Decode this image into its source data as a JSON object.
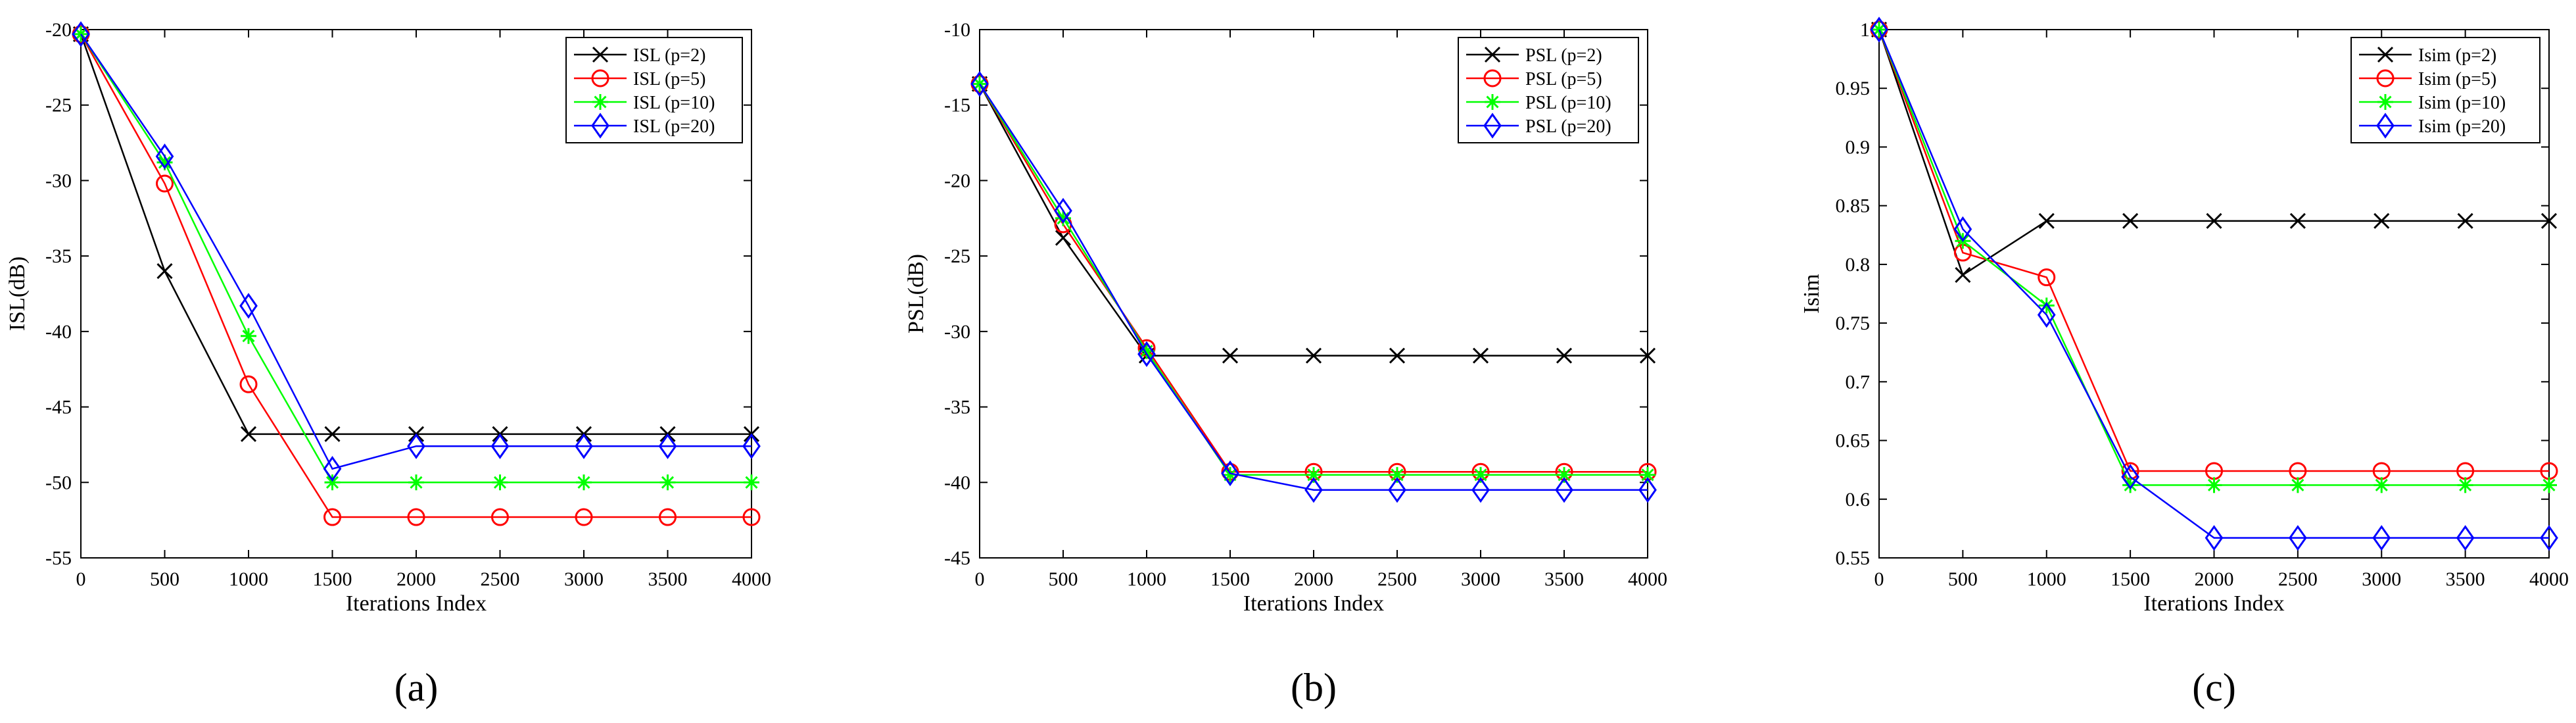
{
  "chart_data": [
    {
      "type": "line",
      "panel_label": "(a)",
      "xlabel": "Iterations Index",
      "ylabel": "ISL(dB)",
      "xlim": [
        0,
        4000
      ],
      "ylim": [
        -55,
        -20
      ],
      "xticks": [
        0,
        500,
        1000,
        1500,
        2000,
        2500,
        3000,
        3500,
        4000
      ],
      "yticks": [
        -55,
        -50,
        -45,
        -40,
        -35,
        -30,
        -25,
        -20
      ],
      "x": [
        0,
        500,
        1000,
        1500,
        2000,
        2500,
        3000,
        3500,
        4000
      ],
      "legend_position": "top-right",
      "grid": false,
      "series": [
        {
          "name": "ISL (p=2)",
          "color": "#000000",
          "marker": "x",
          "values": [
            -20.3,
            -36.0,
            -46.8,
            -46.8,
            -46.8,
            -46.8,
            -46.8,
            -46.8,
            -46.8
          ]
        },
        {
          "name": "ISL (p=5)",
          "color": "#ff0000",
          "marker": "o",
          "values": [
            -20.3,
            -30.2,
            -43.5,
            -52.3,
            -52.3,
            -52.3,
            -52.3,
            -52.3,
            -52.3
          ]
        },
        {
          "name": "ISL (p=10)",
          "color": "#00ff00",
          "marker": "*",
          "values": [
            -20.3,
            -28.8,
            -40.3,
            -50.0,
            -50.0,
            -50.0,
            -50.0,
            -50.0,
            -50.0
          ]
        },
        {
          "name": "ISL (p=20)",
          "color": "#0000ff",
          "marker": "d",
          "values": [
            -20.3,
            -28.4,
            -38.3,
            -49.1,
            -47.6,
            -47.6,
            -47.6,
            -47.6,
            -47.6
          ]
        }
      ]
    },
    {
      "type": "line",
      "panel_label": "(b)",
      "xlabel": "Iterations Index",
      "ylabel": "PSL(dB)",
      "xlim": [
        0,
        4000
      ],
      "ylim": [
        -45,
        -10
      ],
      "xticks": [
        0,
        500,
        1000,
        1500,
        2000,
        2500,
        3000,
        3500,
        4000
      ],
      "yticks": [
        -45,
        -40,
        -35,
        -30,
        -25,
        -20,
        -15,
        -10
      ],
      "x": [
        0,
        500,
        1000,
        1500,
        2000,
        2500,
        3000,
        3500,
        4000
      ],
      "legend_position": "top-right",
      "grid": false,
      "series": [
        {
          "name": "PSL (p=2)",
          "color": "#000000",
          "marker": "x",
          "values": [
            -13.6,
            -23.8,
            -31.6,
            -31.6,
            -31.6,
            -31.6,
            -31.6,
            -31.6,
            -31.6
          ]
        },
        {
          "name": "PSL (p=5)",
          "color": "#ff0000",
          "marker": "o",
          "values": [
            -13.6,
            -22.9,
            -31.1,
            -39.3,
            -39.3,
            -39.3,
            -39.3,
            -39.3,
            -39.3
          ]
        },
        {
          "name": "PSL (p=10)",
          "color": "#00ff00",
          "marker": "*",
          "values": [
            -13.6,
            -22.5,
            -31.3,
            -39.5,
            -39.5,
            -39.5,
            -39.5,
            -39.5,
            -39.5
          ]
        },
        {
          "name": "PSL (p=20)",
          "color": "#0000ff",
          "marker": "d",
          "values": [
            -13.6,
            -22.0,
            -31.5,
            -39.4,
            -40.5,
            -40.5,
            -40.5,
            -40.5,
            -40.5
          ]
        }
      ]
    },
    {
      "type": "line",
      "panel_label": "(c)",
      "xlabel": "Iterations Index",
      "ylabel": "Isim",
      "xlim": [
        0,
        4000
      ],
      "ylim": [
        0.55,
        1
      ],
      "xticks": [
        0,
        500,
        1000,
        1500,
        2000,
        2500,
        3000,
        3500,
        4000
      ],
      "yticks": [
        0.55,
        0.6,
        0.65,
        0.7,
        0.75,
        0.8,
        0.85,
        0.9,
        0.95,
        1
      ],
      "x": [
        0,
        500,
        1000,
        1500,
        2000,
        2500,
        3000,
        3500,
        4000
      ],
      "legend_position": "top-right",
      "grid": false,
      "series": [
        {
          "name": "Isim (p=2)",
          "color": "#000000",
          "marker": "x",
          "values": [
            1.0,
            0.791,
            0.837,
            0.837,
            0.837,
            0.837,
            0.837,
            0.837,
            0.837
          ]
        },
        {
          "name": "Isim (p=5)",
          "color": "#ff0000",
          "marker": "o",
          "values": [
            1.0,
            0.81,
            0.789,
            0.624,
            0.624,
            0.624,
            0.624,
            0.624,
            0.624
          ]
        },
        {
          "name": "Isim (p=10)",
          "color": "#00ff00",
          "marker": "*",
          "values": [
            1.0,
            0.82,
            0.765,
            0.612,
            0.612,
            0.612,
            0.612,
            0.612,
            0.612
          ]
        },
        {
          "name": "Isim (p=20)",
          "color": "#0000ff",
          "marker": "d",
          "values": [
            1.0,
            0.83,
            0.757,
            0.619,
            0.567,
            0.567,
            0.567,
            0.567,
            0.567
          ]
        }
      ]
    }
  ]
}
